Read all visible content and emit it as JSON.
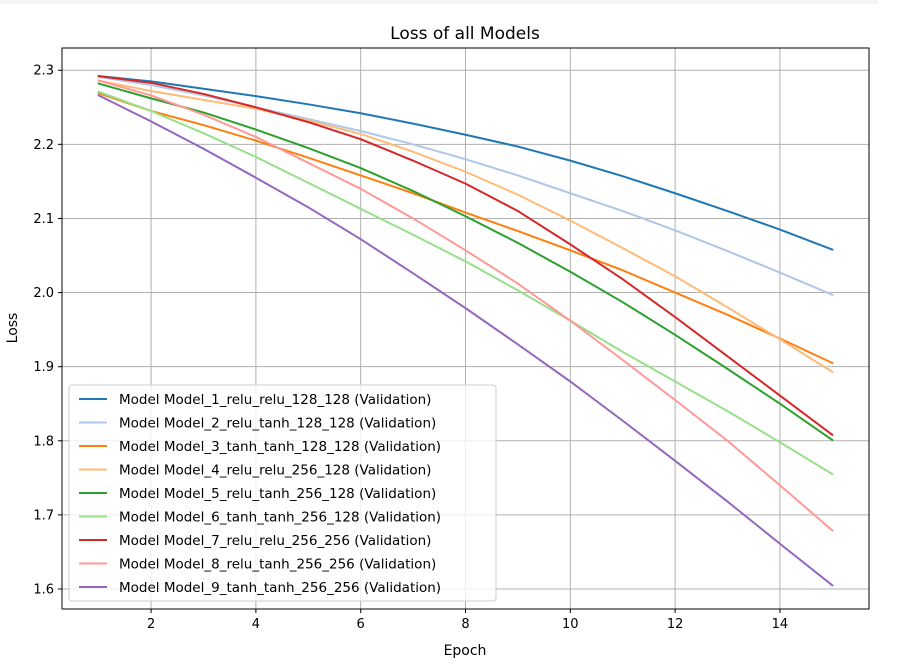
{
  "chart_data": {
    "type": "line",
    "title": "Loss of all Models",
    "xlabel": "Epoch",
    "ylabel": "Loss",
    "xlim": [
      0.3,
      15.7
    ],
    "ylim": [
      1.573,
      2.33
    ],
    "xticks": [
      2,
      4,
      6,
      8,
      10,
      12,
      14
    ],
    "yticks": [
      1.6,
      1.7,
      1.8,
      1.9,
      2.0,
      2.1,
      2.2,
      2.3
    ],
    "ytick_labels": [
      "1.6",
      "1.7",
      "1.8",
      "1.9",
      "2.0",
      "2.1",
      "2.2",
      "2.3"
    ],
    "grid": true,
    "legend_position": "lower-left",
    "x": [
      1,
      2,
      3,
      4,
      5,
      6,
      7,
      8,
      9,
      10,
      11,
      12,
      13,
      14,
      15
    ],
    "series": [
      {
        "name": "Model Model_1_relu_relu_128_128 (Validation)",
        "color": "#1f77b4",
        "values": [
          2.292,
          2.285,
          2.275,
          2.265,
          2.254,
          2.242,
          2.228,
          2.213,
          2.197,
          2.178,
          2.157,
          2.134,
          2.11,
          2.085,
          2.058
        ]
      },
      {
        "name": "Model Model_2_relu_tanh_128_128 (Validation)",
        "color": "#aec7e8",
        "values": [
          2.291,
          2.28,
          2.266,
          2.25,
          2.234,
          2.218,
          2.2,
          2.18,
          2.158,
          2.134,
          2.11,
          2.084,
          2.056,
          2.027,
          1.997
        ]
      },
      {
        "name": "Model Model_3_tanh_tanh_128_128 (Validation)",
        "color": "#ff7f0e",
        "values": [
          2.269,
          2.245,
          2.226,
          2.205,
          2.182,
          2.158,
          2.134,
          2.108,
          2.083,
          2.057,
          2.03,
          2.0,
          1.97,
          1.938,
          1.905
        ]
      },
      {
        "name": "Model Model_4_relu_relu_256_128 (Validation)",
        "color": "#ffbb78",
        "values": [
          2.286,
          2.272,
          2.26,
          2.248,
          2.232,
          2.214,
          2.19,
          2.163,
          2.132,
          2.097,
          2.06,
          2.022,
          1.98,
          1.937,
          1.893
        ]
      },
      {
        "name": "Model Model_5_relu_tanh_256_128 (Validation)",
        "color": "#2ca02c",
        "values": [
          2.282,
          2.262,
          2.243,
          2.22,
          2.195,
          2.168,
          2.137,
          2.103,
          2.067,
          2.028,
          1.987,
          1.943,
          1.897,
          1.85,
          1.801
        ]
      },
      {
        "name": "Model Model_6_tanh_tanh_256_128 (Validation)",
        "color": "#98df8a",
        "values": [
          2.271,
          2.245,
          2.215,
          2.183,
          2.148,
          2.113,
          2.078,
          2.042,
          2.003,
          1.962,
          1.92,
          1.88,
          1.84,
          1.798,
          1.755
        ]
      },
      {
        "name": "Model Model_7_relu_relu_256_256 (Validation)",
        "color": "#d62728",
        "values": [
          2.292,
          2.283,
          2.268,
          2.25,
          2.23,
          2.207,
          2.178,
          2.147,
          2.11,
          2.065,
          2.018,
          1.967,
          1.914,
          1.861,
          1.808
        ]
      },
      {
        "name": "Model Model_8_relu_tanh_256_256 (Validation)",
        "color": "#ff9896",
        "values": [
          2.286,
          2.266,
          2.24,
          2.21,
          2.175,
          2.14,
          2.1,
          2.057,
          2.012,
          1.962,
          1.909,
          1.855,
          1.8,
          1.74,
          1.679
        ]
      },
      {
        "name": "Model Model_9_tanh_tanh_256_256 (Validation)",
        "color": "#9467bd",
        "values": [
          2.266,
          2.231,
          2.194,
          2.155,
          2.115,
          2.072,
          2.026,
          1.979,
          1.93,
          1.88,
          1.827,
          1.773,
          1.718,
          1.661,
          1.605
        ]
      }
    ]
  }
}
